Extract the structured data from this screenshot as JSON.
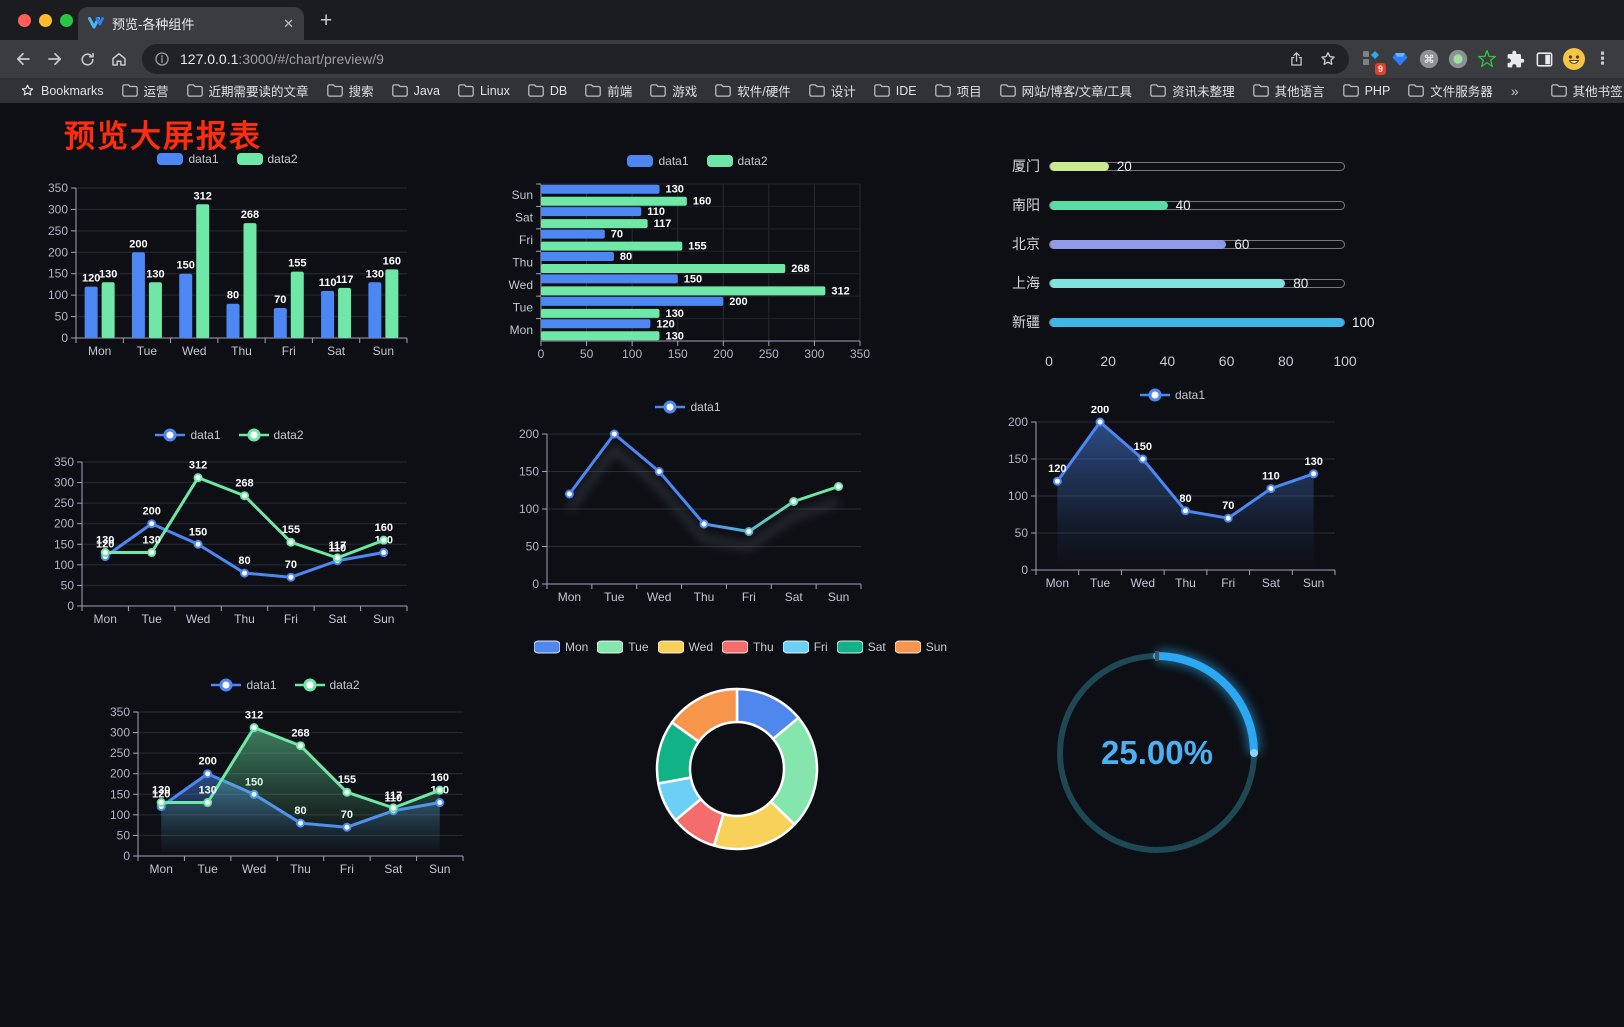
{
  "browser": {
    "tab": {
      "title": "预览-各种组件",
      "close_glyph": "✕",
      "new_tab_glyph": "+"
    },
    "url": {
      "host": "127.0.0.1",
      "rest": ":3000/#/chart/preview/9"
    },
    "extensions_badge": "9",
    "menu_glyph": "⋮",
    "bookmarks": {
      "root_label": "Bookmarks",
      "items": [
        "运营",
        "近期需要读的文章",
        "搜索",
        "Java",
        "Linux",
        "DB",
        "前端",
        "游戏",
        "软件/硬件",
        "设计",
        "IDE",
        "项目",
        "网站/博客/文章/工具",
        "资讯未整理",
        "其他语言",
        "PHP",
        "文件服务器"
      ],
      "overflow_glyph": "»",
      "other_label": "其他书签"
    }
  },
  "page": {
    "title": "预览大屏报表",
    "title_color": "#ff2d0d",
    "background": "#0d0f14"
  },
  "chart_data": [
    {
      "id": "bar-grouped",
      "type": "bar",
      "legend_position": "top",
      "value_labels": true,
      "categories": [
        "Mon",
        "Tue",
        "Wed",
        "Thu",
        "Fri",
        "Sat",
        "Sun"
      ],
      "series": [
        {
          "name": "data1",
          "color": "#4C87F3",
          "values": [
            120,
            200,
            150,
            80,
            70,
            110,
            130
          ]
        },
        {
          "name": "data2",
          "color": "#6FE7A7",
          "values": [
            130,
            130,
            312,
            268,
            155,
            117,
            160
          ]
        }
      ],
      "ylim": [
        0,
        350
      ],
      "ytick_step": 50
    },
    {
      "id": "bar-horizontal",
      "type": "bar",
      "orientation": "horizontal",
      "legend_position": "top",
      "value_labels": true,
      "categories": [
        "Mon",
        "Tue",
        "Wed",
        "Thu",
        "Fri",
        "Sat",
        "Sun"
      ],
      "category_order_top_to_bottom": [
        "Sun",
        "Sat",
        "Fri",
        "Thu",
        "Wed",
        "Tue",
        "Mon"
      ],
      "series": [
        {
          "name": "data1",
          "color": "#4C87F3",
          "values": [
            120,
            200,
            150,
            80,
            70,
            110,
            130
          ]
        },
        {
          "name": "data2",
          "color": "#6FE7A7",
          "values": [
            130,
            130,
            312,
            268,
            155,
            117,
            160
          ]
        }
      ],
      "xlim": [
        0,
        350
      ],
      "xtick_step": 50
    },
    {
      "id": "progress-bars",
      "type": "bar",
      "variant": "progress",
      "rows": [
        {
          "label": "厦门",
          "value": 20,
          "color": "#C9EA90"
        },
        {
          "label": "南阳",
          "value": 40,
          "color": "#5BDCA6"
        },
        {
          "label": "北京",
          "value": 60,
          "color": "#9098E8"
        },
        {
          "label": "上海",
          "value": 80,
          "color": "#7FE2DF"
        },
        {
          "label": "新疆",
          "value": 100,
          "color": "#3EB7E8"
        }
      ],
      "xlim": [
        0,
        100
      ],
      "ticks": [
        0,
        20,
        40,
        60,
        80,
        100
      ]
    },
    {
      "id": "line-two",
      "type": "line",
      "legend_position": "top",
      "value_labels": true,
      "categories": [
        "Mon",
        "Tue",
        "Wed",
        "Thu",
        "Fri",
        "Sat",
        "Sun"
      ],
      "series": [
        {
          "name": "data1",
          "color": "#4C87F3",
          "values": [
            120,
            200,
            150,
            80,
            70,
            110,
            130
          ]
        },
        {
          "name": "data2",
          "color": "#6FE7A7",
          "values": [
            130,
            130,
            312,
            268,
            155,
            117,
            160
          ]
        }
      ],
      "ylim": [
        0,
        350
      ],
      "ytick_step": 50
    },
    {
      "id": "line-gradient",
      "type": "line",
      "legend_position": "top",
      "value_labels": false,
      "shadow": true,
      "categories": [
        "Mon",
        "Tue",
        "Wed",
        "Thu",
        "Fri",
        "Sat",
        "Sun"
      ],
      "series": [
        {
          "name": "data1",
          "color": "#4C87F3",
          "gradient": [
            "#4C87F3",
            "#6FE7A7"
          ],
          "values": [
            120,
            200,
            150,
            80,
            70,
            110,
            130
          ]
        }
      ],
      "ylim": [
        0,
        200
      ],
      "ytick_step": 50
    },
    {
      "id": "area-one",
      "type": "area",
      "legend_position": "top",
      "value_labels": true,
      "categories": [
        "Mon",
        "Tue",
        "Wed",
        "Thu",
        "Fri",
        "Sat",
        "Sun"
      ],
      "series": [
        {
          "name": "data1",
          "color": "#4C87F3",
          "values": [
            120,
            200,
            150,
            80,
            70,
            110,
            130
          ]
        }
      ],
      "ylim": [
        0,
        200
      ],
      "ytick_step": 50
    },
    {
      "id": "area-two",
      "type": "area",
      "legend_position": "top",
      "value_labels": true,
      "categories": [
        "Mon",
        "Tue",
        "Wed",
        "Thu",
        "Fri",
        "Sat",
        "Sun"
      ],
      "series": [
        {
          "name": "data1",
          "color": "#4C87F3",
          "values": [
            120,
            200,
            150,
            80,
            70,
            110,
            130
          ]
        },
        {
          "name": "data2",
          "color": "#6FE7A7",
          "values": [
            130,
            130,
            312,
            268,
            155,
            117,
            160
          ]
        }
      ],
      "ylim": [
        0,
        350
      ],
      "ytick_step": 50
    },
    {
      "id": "pie-week",
      "type": "pie",
      "donut": true,
      "legend_position": "top",
      "slices": [
        {
          "label": "Mon",
          "value": 120,
          "color": "#5087EC"
        },
        {
          "label": "Tue",
          "value": 200,
          "color": "#84E6AD"
        },
        {
          "label": "Wed",
          "value": 150,
          "color": "#F7D159"
        },
        {
          "label": "Thu",
          "value": 80,
          "color": "#F56C6C"
        },
        {
          "label": "Fri",
          "value": 70,
          "color": "#6CCFF5"
        },
        {
          "label": "Sat",
          "value": 110,
          "color": "#10B286"
        },
        {
          "label": "Sun",
          "value": 130,
          "color": "#F7954B"
        }
      ]
    },
    {
      "id": "gauge-progress",
      "type": "gauge",
      "value_percent": 25,
      "value_text": "25.00%",
      "arc_color": "#2BA8F1",
      "track_color": "#1D4854",
      "text_color": "#4CB1F3"
    }
  ]
}
